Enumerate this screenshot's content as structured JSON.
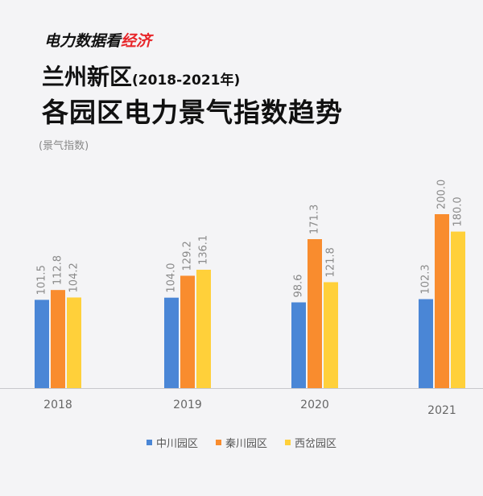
{
  "header": {
    "brand_prefix": "电力数据看",
    "brand_accent": "经济",
    "title_main": "兰州新区",
    "title_years": "(2018-2021年)",
    "subtitle": "各园区电力景气指数趋势",
    "unit": "(景气指数)"
  },
  "colors": {
    "brand_accent": "#e8262a",
    "series": [
      "#4a86d6",
      "#f98c2e",
      "#ffd03a"
    ]
  },
  "chart_data": {
    "type": "bar",
    "categories": [
      "2018",
      "2019",
      "2020",
      "2021"
    ],
    "series": [
      {
        "name": "中川园区",
        "values": [
          101.5,
          104.0,
          98.6,
          102.3
        ]
      },
      {
        "name": "秦川园区",
        "values": [
          112.8,
          129.2,
          171.3,
          200.0
        ]
      },
      {
        "name": "西岔园区",
        "values": [
          104.2,
          136.1,
          121.8,
          180.0
        ]
      }
    ],
    "ylim": [
      0,
      200
    ],
    "grid": false,
    "legend_position": "bottom-center",
    "data_labels_rotated": true
  }
}
